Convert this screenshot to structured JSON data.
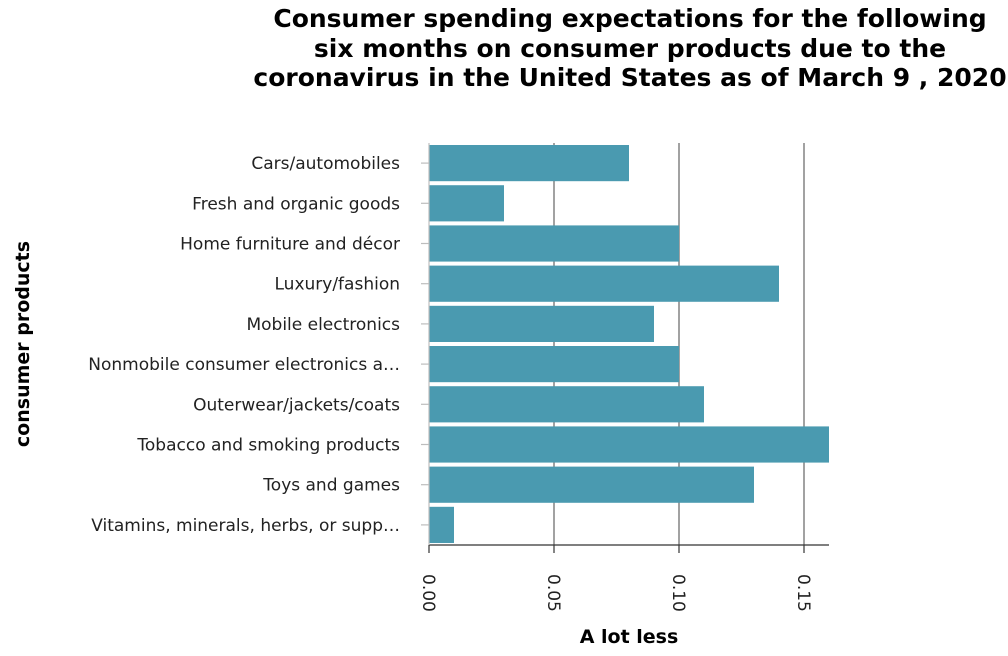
{
  "chart_data": {
    "type": "bar",
    "orientation": "horizontal",
    "title": "Consumer spending expectations for the following six months on consumer products due to the coronavirus in the United States as of March 9 , 2020",
    "xlabel": "A lot less",
    "ylabel": "consumer products",
    "categories": [
      "Cars/automobiles",
      "Fresh and organic goods",
      "Home furniture and décor",
      "Luxury/fashion",
      "Mobile electronics",
      "Nonmobile consumer electronics a…",
      "Outerwear/jackets/coats",
      "Tobacco and smoking products",
      "Toys and games",
      "Vitamins, minerals, herbs, or supp…"
    ],
    "values": [
      0.08,
      0.03,
      0.1,
      0.14,
      0.09,
      0.1,
      0.11,
      0.16,
      0.13,
      0.01
    ],
    "xlim": [
      0,
      0.16
    ],
    "xticks": [
      0.0,
      0.05,
      0.1,
      0.15
    ],
    "xtick_labels": [
      "0.00",
      "0.05",
      "0.10",
      "0.15"
    ],
    "grid": "vertical",
    "bar_color": "#4a9ab0"
  }
}
